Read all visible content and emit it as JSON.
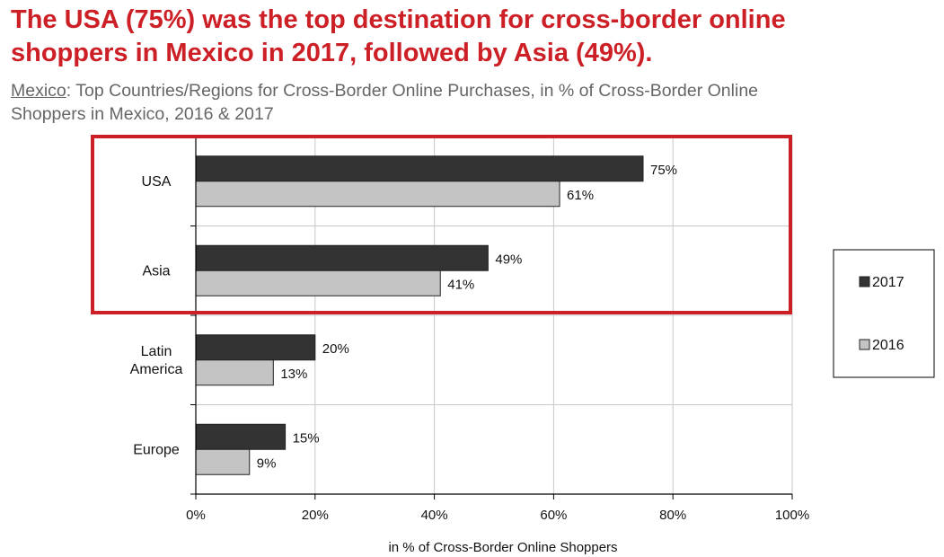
{
  "headline": [
    "The USA (75%) was the top destination for cross-border online",
    "shoppers in Mexico in 2017, followed by Asia (49%)."
  ],
  "subtitle": {
    "country": "Mexico",
    "rest_line1": ": Top Countries/Regions for Cross-Border Online Purchases, in % of Cross-Border Online",
    "line2": "Shoppers in Mexico, 2016 & 2017"
  },
  "colors": {
    "headline": "#cc1f26",
    "highlight_box": "#cc1f26",
    "series_2017": "#333333",
    "series_2016": "#c4c4c4"
  },
  "chart_data": {
    "type": "bar",
    "orientation": "horizontal",
    "categories": [
      [
        "USA"
      ],
      [
        "Asia"
      ],
      [
        "Latin",
        "America"
      ],
      [
        "Europe"
      ]
    ],
    "series": [
      {
        "name": "2017",
        "values": [
          75,
          49,
          20,
          15
        ],
        "labels": [
          "75%",
          "49%",
          "20%",
          "15%"
        ]
      },
      {
        "name": "2016",
        "values": [
          61,
          41,
          13,
          9
        ],
        "labels": [
          "61%",
          "41%",
          "13%",
          "9%"
        ]
      }
    ],
    "xlim": [
      0,
      100
    ],
    "xticks": [
      0,
      20,
      40,
      60,
      80,
      100
    ],
    "xtick_labels": [
      "0%",
      "20%",
      "40%",
      "60%",
      "80%",
      "100%"
    ],
    "xlabel": "in % of Cross-Border Online Shoppers",
    "grid": true,
    "legend_position": "right",
    "highlighted_categories": [
      "USA",
      "Asia"
    ]
  }
}
